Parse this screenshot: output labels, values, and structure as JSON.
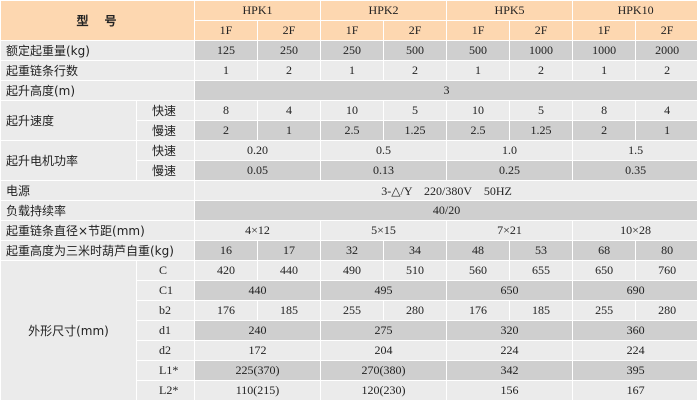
{
  "header": {
    "title": "型　号",
    "models": [
      "HPK1",
      "HPK2",
      "HPK5",
      "HPK10"
    ],
    "variants": [
      "1F",
      "2F",
      "1F",
      "2F",
      "1F",
      "2F",
      "1F",
      "2F"
    ]
  },
  "colors": {
    "header_bg": "#fdd7b0",
    "row_light": "#ebebeb",
    "row_dark": "#cfcfcf"
  },
  "rows": [
    {
      "label": "额定起重量(kg)",
      "values": [
        "125",
        "250",
        "250",
        "500",
        "500",
        "1000",
        "1000",
        "2000"
      ]
    },
    {
      "label": "起重链条行数",
      "values": [
        "1",
        "2",
        "1",
        "2",
        "1",
        "2",
        "1",
        "2"
      ]
    },
    {
      "label": "起升高度(m)",
      "values": [
        "3"
      ]
    },
    {
      "label": "起升速度",
      "sub_rows": [
        {
          "sub": "快速",
          "values": [
            "8",
            "4",
            "10",
            "5",
            "10",
            "5",
            "8",
            "4"
          ]
        },
        {
          "sub": "慢速",
          "values": [
            "2",
            "1",
            "2.5",
            "1.25",
            "2.5",
            "1.25",
            "2",
            "1"
          ]
        }
      ]
    },
    {
      "label": "起升电机功率",
      "sub_rows": [
        {
          "sub": "快速",
          "values": [
            "0.20",
            "0.5",
            "1.0",
            "1.5"
          ]
        },
        {
          "sub": "慢速",
          "values": [
            "0.05",
            "0.13",
            "0.25",
            "0.35"
          ]
        }
      ]
    },
    {
      "label": "电源",
      "values": [
        "3-△/Y　220/380V　50HZ"
      ]
    },
    {
      "label": "负载持续率",
      "values": [
        "40/20"
      ]
    },
    {
      "label": "起重链条直径×节距(mm)",
      "values": [
        "4×12",
        "5×15",
        "7×21",
        "10×28"
      ]
    },
    {
      "label": "起重高度为三米时葫芦自重(kg)",
      "values": [
        "16",
        "17",
        "32",
        "34",
        "48",
        "53",
        "68",
        "80"
      ]
    },
    {
      "label": "外形尺寸(mm)",
      "centered": true,
      "sub_rows": [
        {
          "sub": "C",
          "values": [
            "420",
            "440",
            "490",
            "510",
            "560",
            "655",
            "650",
            "760"
          ]
        },
        {
          "sub": "C1",
          "values": [
            "440",
            "495",
            "650",
            "690"
          ]
        },
        {
          "sub": "b2",
          "values": [
            "176",
            "185",
            "255",
            "280",
            "176",
            "185",
            "255",
            "280"
          ]
        },
        {
          "sub": "d1",
          "values": [
            "240",
            "275",
            "320",
            "360"
          ]
        },
        {
          "sub": "d2",
          "values": [
            "172",
            "204",
            "224",
            "224"
          ]
        },
        {
          "sub": "L1*",
          "values": [
            "225(370)",
            "270(380)",
            "342",
            "395"
          ]
        },
        {
          "sub": "L2*",
          "values": [
            "110(215)",
            "120(230)",
            "156",
            "167"
          ]
        }
      ]
    }
  ]
}
